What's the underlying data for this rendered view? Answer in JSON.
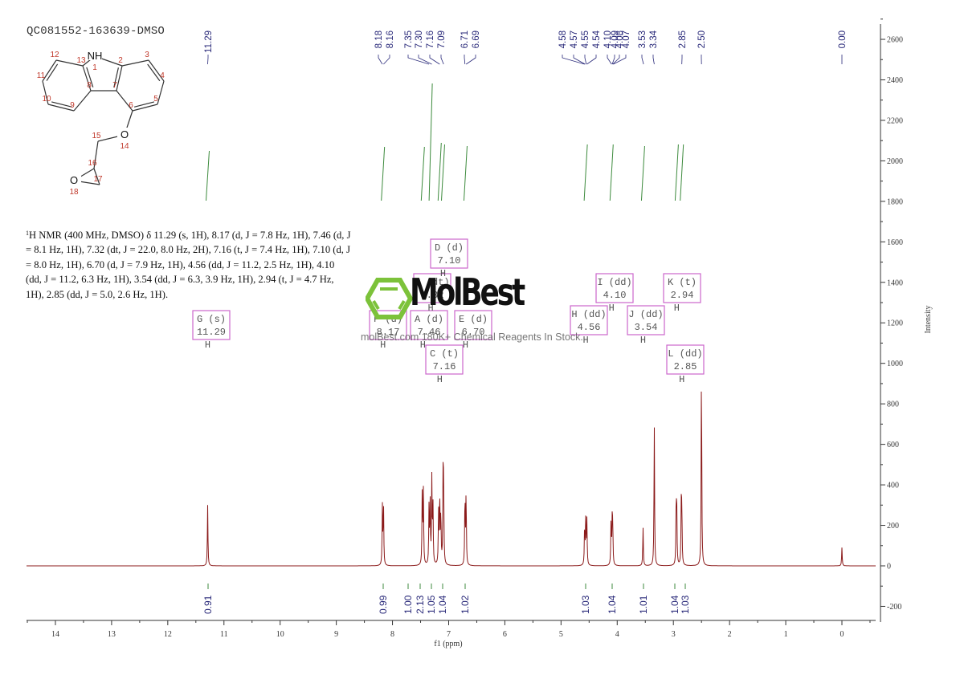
{
  "header": {
    "sample_id": "QC081552-163639-DMSO"
  },
  "nmr_description": {
    "nucleus_sup": "1",
    "text": "H NMR (400 MHz, DMSO) δ 11.29 (s, 1H), 8.17 (d, J = 7.8 Hz, 1H), 7.46 (d, J = 8.1 Hz, 1H), 7.32 (dt, J = 22.0, 8.0 Hz, 2H), 7.16 (t, J = 7.4 Hz, 1H), 7.10 (d, J = 8.0 Hz, 1H), 6.70 (d, J = 7.9 Hz, 1H), 4.56 (dd, J = 11.2, 2.5 Hz, 1H), 4.10 (dd, J = 11.2, 6.3 Hz, 1H), 3.54 (dd, J = 6.3, 3.9 Hz, 1H), 2.94 (t, J = 4.7 Hz, 1H), 2.85 (dd, J = 5.0, 2.6 Hz, 1H)."
  },
  "structure": {
    "atoms": [
      {
        "label": "NH",
        "num": "1"
      },
      {
        "num": "2"
      },
      {
        "num": "3"
      },
      {
        "num": "4"
      },
      {
        "num": "5"
      },
      {
        "num": "6"
      },
      {
        "num": "7"
      },
      {
        "num": "8"
      },
      {
        "num": "9"
      },
      {
        "num": "10"
      },
      {
        "num": "11"
      },
      {
        "num": "12"
      },
      {
        "num": "13"
      },
      {
        "label": "O",
        "num": "14"
      },
      {
        "num": "15"
      },
      {
        "num": "16"
      },
      {
        "num": "17"
      },
      {
        "label": "O",
        "num": "18"
      }
    ]
  },
  "watermark": {
    "brand": "MolBest",
    "tagline": "molBest.com 180K+ Chemical Reagents In Stock."
  },
  "chart_data": {
    "type": "line",
    "title": "QC081552-163639-DMSO",
    "xlabel": "f1 (ppm)",
    "ylabel": "Intensity",
    "xlim": [
      14.5,
      -0.6
    ],
    "ylim": [
      -270,
      2700
    ],
    "x_ticks": [
      14,
      13,
      12,
      11,
      10,
      9,
      8,
      7,
      6,
      5,
      4,
      3,
      2,
      1,
      0
    ],
    "y_ticks": [
      2600,
      2400,
      2200,
      2000,
      1800,
      1600,
      1400,
      1200,
      1000,
      800,
      600,
      400,
      200,
      0,
      -200
    ],
    "grid": false,
    "peak_labels": [
      "11.29",
      "8.18",
      "8.16",
      "7.35",
      "7.30",
      "7.16",
      "7.09",
      "6.71",
      "6.69",
      "4.58",
      "4.57",
      "4.55",
      "4.54",
      "4.10",
      "4.09",
      "4.08",
      "4.07",
      "3.53",
      "3.34",
      "2.85",
      "2.50",
      "0.00"
    ],
    "peaks": [
      {
        "ppm": 11.29,
        "intensity": 300
      },
      {
        "ppm": 8.18,
        "intensity": 290
      },
      {
        "ppm": 8.16,
        "intensity": 300
      },
      {
        "ppm": 7.47,
        "intensity": 380
      },
      {
        "ppm": 7.45,
        "intensity": 360
      },
      {
        "ppm": 7.35,
        "intensity": 280
      },
      {
        "ppm": 7.33,
        "intensity": 310
      },
      {
        "ppm": 7.3,
        "intensity": 420
      },
      {
        "ppm": 7.28,
        "intensity": 300
      },
      {
        "ppm": 7.18,
        "intensity": 260
      },
      {
        "ppm": 7.16,
        "intensity": 340
      },
      {
        "ppm": 7.14,
        "intensity": 250
      },
      {
        "ppm": 7.1,
        "intensity": 400
      },
      {
        "ppm": 7.09,
        "intensity": 380
      },
      {
        "ppm": 6.71,
        "intensity": 350
      },
      {
        "ppm": 6.69,
        "intensity": 360
      },
      {
        "ppm": 4.58,
        "intensity": 200
      },
      {
        "ppm": 4.56,
        "intensity": 230
      },
      {
        "ppm": 4.54,
        "intensity": 220
      },
      {
        "ppm": 4.11,
        "intensity": 210
      },
      {
        "ppm": 4.09,
        "intensity": 200
      },
      {
        "ppm": 4.08,
        "intensity": 190
      },
      {
        "ppm": 3.54,
        "intensity": 190
      },
      {
        "ppm": 3.34,
        "intensity": 700
      },
      {
        "ppm": 2.95,
        "intensity": 300
      },
      {
        "ppm": 2.94,
        "intensity": 250
      },
      {
        "ppm": 2.86,
        "intensity": 280
      },
      {
        "ppm": 2.85,
        "intensity": 270
      },
      {
        "ppm": 2.5,
        "intensity": 1010
      },
      {
        "ppm": 0.0,
        "intensity": 90
      }
    ],
    "multiplets": [
      {
        "id": "G",
        "mult": "s",
        "shift": "11.29"
      },
      {
        "id": "F",
        "mult": "d",
        "shift": "8.17"
      },
      {
        "id": "A",
        "mult": "d",
        "shift": "7.46"
      },
      {
        "id": "B",
        "mult": "dt",
        "shift": "7.32"
      },
      {
        "id": "C",
        "mult": "t",
        "shift": "7.16"
      },
      {
        "id": "D",
        "mult": "d",
        "shift": "7.10"
      },
      {
        "id": "E",
        "mult": "d",
        "shift": "6.70"
      },
      {
        "id": "H",
        "mult": "dd",
        "shift": "4.56"
      },
      {
        "id": "I",
        "mult": "dd",
        "shift": "4.10"
      },
      {
        "id": "J",
        "mult": "dd",
        "shift": "3.54"
      },
      {
        "id": "K",
        "mult": "t",
        "shift": "2.94"
      },
      {
        "id": "L",
        "mult": "dd",
        "shift": "2.85"
      }
    ],
    "integrals": [
      {
        "ppm": 11.29,
        "value": "0.91"
      },
      {
        "ppm": 8.17,
        "value": "0.99"
      },
      {
        "ppm": 7.46,
        "value": "1.00"
      },
      {
        "ppm": 7.32,
        "value": "2.13"
      },
      {
        "ppm": 7.16,
        "value": "1.05"
      },
      {
        "ppm": 7.1,
        "value": "1.04"
      },
      {
        "ppm": 6.7,
        "value": "1.02"
      },
      {
        "ppm": 4.56,
        "value": "1.03"
      },
      {
        "ppm": 4.1,
        "value": "1.04"
      },
      {
        "ppm": 3.54,
        "value": "1.01"
      },
      {
        "ppm": 2.94,
        "value": "1.04"
      },
      {
        "ppm": 2.85,
        "value": "1.03"
      }
    ]
  }
}
